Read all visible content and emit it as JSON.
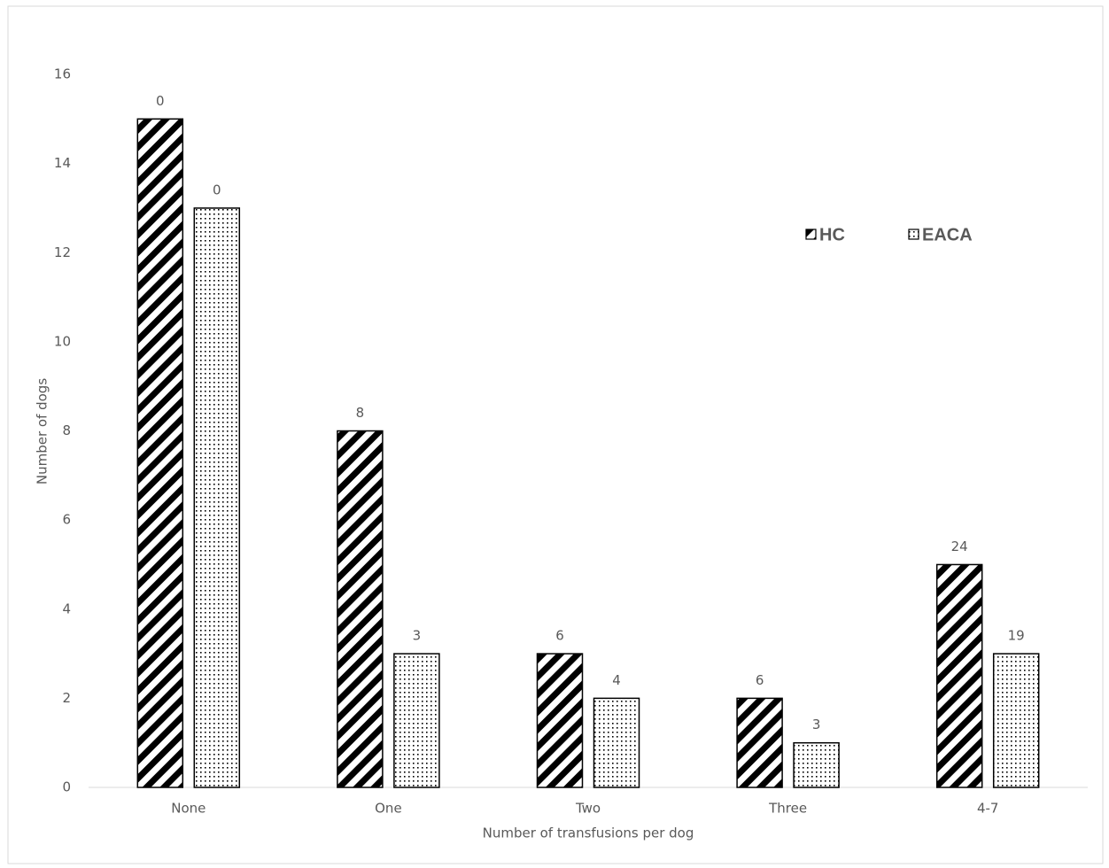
{
  "chart_data": {
    "type": "bar",
    "x_label": "Number of transfusions per dog",
    "y_label": "Number of dogs",
    "categories": [
      "None",
      "One",
      "Two",
      "Three",
      "4-7"
    ],
    "series": [
      {
        "name": "HC",
        "pattern": "hatch",
        "color": "#000000",
        "values": [
          15,
          8,
          3,
          2,
          5
        ],
        "annotations": [
          "0",
          "8",
          "6",
          "6",
          "24"
        ]
      },
      {
        "name": "EACA",
        "pattern": "dots",
        "color": "#000000",
        "values": [
          13,
          3,
          2,
          1,
          3
        ],
        "annotations": [
          "0",
          "3",
          "4",
          "3",
          "19"
        ]
      }
    ],
    "ylim": [
      0,
      16
    ],
    "yticks": [
      0,
      2,
      4,
      6,
      8,
      10,
      12,
      14,
      16
    ],
    "grid": false,
    "legend": "top-right"
  }
}
